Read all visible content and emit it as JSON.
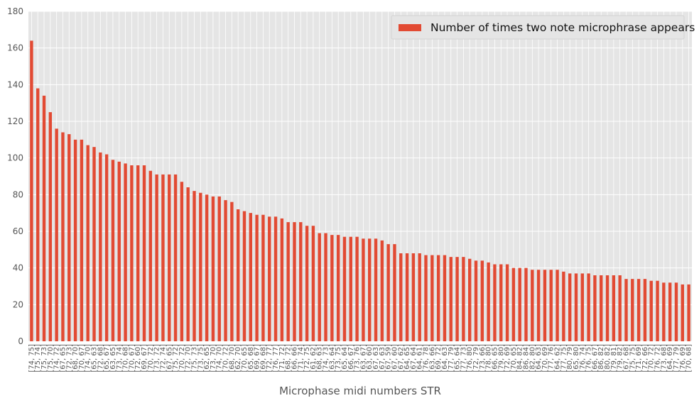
{
  "chart_data": {
    "type": "bar",
    "xlabel": "Microphase midi numbers STR",
    "ylabel": "",
    "ylim": [
      0,
      180
    ],
    "yticks": [
      0,
      20,
      40,
      60,
      80,
      100,
      120,
      140,
      160,
      180
    ],
    "grid": true,
    "legend": {
      "position": "top-right",
      "entries": [
        "Number of times two note microphrase appears"
      ]
    },
    "colors": {
      "bar": "#E24A33",
      "plot_bg": "#E5E5E5",
      "grid": "#FFFFFF"
    },
    "series": [
      {
        "name": "Number of times two note microphrase appears",
        "values": [
          164,
          138,
          134,
          125,
          116,
          114,
          113,
          110,
          110,
          107,
          106,
          103,
          102,
          99,
          98,
          97,
          96,
          96,
          96,
          93,
          91,
          91,
          91,
          91,
          87,
          84,
          82,
          81,
          80,
          79,
          79,
          77,
          76,
          72,
          71,
          70,
          69,
          69,
          68,
          68,
          67,
          65,
          65,
          65,
          63,
          63,
          59,
          59,
          58,
          58,
          57,
          57,
          57,
          56,
          56,
          56,
          55,
          53,
          53,
          48,
          48,
          48,
          48,
          47,
          47,
          47,
          47,
          46,
          46,
          46,
          45,
          44,
          44,
          43,
          42,
          42,
          42,
          40,
          40,
          40,
          39,
          39,
          39,
          39,
          39,
          38,
          37,
          37,
          37,
          37,
          36,
          36,
          36,
          36,
          36,
          34,
          34,
          34,
          34,
          33,
          33,
          32,
          32,
          32,
          31,
          31
        ]
      }
    ],
    "categories": [
      "[74, 75]",
      "[75, 74]",
      "[75, 73]",
      "[75, 70]",
      "[74, 72]",
      "[67, 65]",
      "[72, 73]",
      "[68, 70]",
      "[70, 67]",
      "[74, 70]",
      "[65, 63]",
      "[72, 68]",
      "[65, 67]",
      "[63, 65]",
      "[73, 74]",
      "[70, 68]",
      "[70, 67]",
      "[72, 60]",
      "[69, 67]",
      "[70, 72]",
      "[73, 72]",
      "[72, 74]",
      "[67, 65]",
      "[75, 72]",
      "[70, 72]",
      "[72, 70]",
      "[75, 73]",
      "[73, 75]",
      "[62, 65]",
      "[73, 70]",
      "[74, 70]",
      "[70, 72]",
      "[68, 70]",
      "[62, 70]",
      "[70, 65]",
      "[65, 68]",
      "[69, 67]",
      "[69, 68]",
      "[72, 77]",
      "[76, 77]",
      "[71, 72]",
      "[68, 72]",
      "[66, 66]",
      "[71, 74]",
      "[72, 75]",
      "[61, 62]",
      "[68, 63]",
      "[74, 73]",
      "[63, 64]",
      "[73, 75]",
      "[65, 64]",
      "[66, 67]",
      "[73, 76]",
      "[63, 67]",
      "[63, 60]",
      "[67, 63]",
      "[67, 63]",
      "[67, 59]",
      "[67, 60]",
      "[67, 62]",
      "[64, 65]",
      "[67, 64]",
      "[64, 61]",
      "[76, 78]",
      "[63, 66]",
      "[69, 72]",
      "[64, 63]",
      "[77, 79]",
      "[65, 64]",
      "[77, 73]",
      "[76, 80]",
      "[72, 79]",
      "[73, 66]",
      "[78, 80]",
      "[66, 65]",
      "[79, 80]",
      "[72, 69]",
      "[70, 65]",
      "[84, 82]",
      "[86, 84]",
      "[82, 80]",
      "[64, 63]",
      "[70, 69]",
      "[77, 76]",
      "[64, 62]",
      "[77, 75]",
      "[80, 79]",
      "[65, 80]",
      "[76, 74]",
      "[76, 75]",
      "[66, 67]",
      "[86, 82]",
      "[80, 82]",
      "[79, 81]",
      "[79, 82]",
      "[67, 68]",
      "[75, 75]",
      "[71, 69]",
      "[72, 66]",
      "[70, 72]",
      "[76, 72]",
      "[73, 68]",
      "[64, 69]",
      "[77, 79]",
      "[76, 69]",
      "[70, 68]"
    ]
  }
}
